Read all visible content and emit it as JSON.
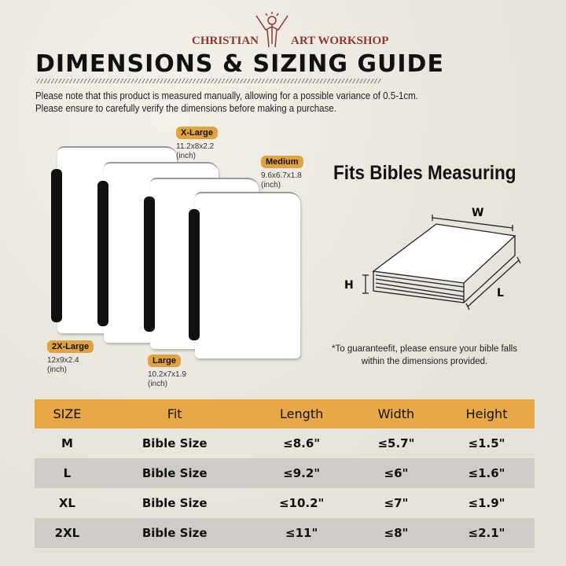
{
  "brand": {
    "left": "CHRISTIAN",
    "right": "ART WORKSHOP"
  },
  "title": "DIMENSIONS & SIZING GUIDE",
  "notes": [
    "Please note that this product is measured manually, allowing for a possible variance of 0.5-1cm.",
    "Please ensure to carefully verify the dimensions before making a purchase."
  ],
  "sizes": {
    "xl": {
      "label": "X-Large",
      "dims": "11.2x8x2.2",
      "unit": "(inch)"
    },
    "m": {
      "label": "Medium",
      "dims": "9.6x6.7x1.8",
      "unit": "(inch)"
    },
    "xxl": {
      "label": "2X-Large",
      "dims": "12x9x2.4",
      "unit": "(inch)"
    },
    "l": {
      "label": "Large",
      "dims": "10.2x7x1.9",
      "unit": "(inch)"
    }
  },
  "fits_title": "Fits Bibles Measuring",
  "diagram": {
    "w": "W",
    "h": "H",
    "l": "L"
  },
  "guarantee": [
    "*To guaranteefit, please ensure your bible falls",
    "within the dimensions provided."
  ],
  "table": {
    "headers": [
      "SIZE",
      "Fit",
      "Length",
      "Width",
      "Height"
    ],
    "rows": [
      [
        "M",
        "Bible Size",
        "≤8.6\"",
        "≤5.7\"",
        "≤1.5\""
      ],
      [
        "L",
        "Bible Size",
        "≤9.2\"",
        "≤6\"",
        "≤1.6\""
      ],
      [
        "XL",
        "Bible Size",
        "≤10.2\"",
        "≤7\"",
        "≤1.9\""
      ],
      [
        "2XL",
        "Bible Size",
        "≤11\"",
        "≤8\"",
        "≤2.1\""
      ]
    ]
  },
  "colors": {
    "accent": "#e8a846",
    "brand": "#8a3a2c",
    "row_alt": "#cfcbc6"
  }
}
